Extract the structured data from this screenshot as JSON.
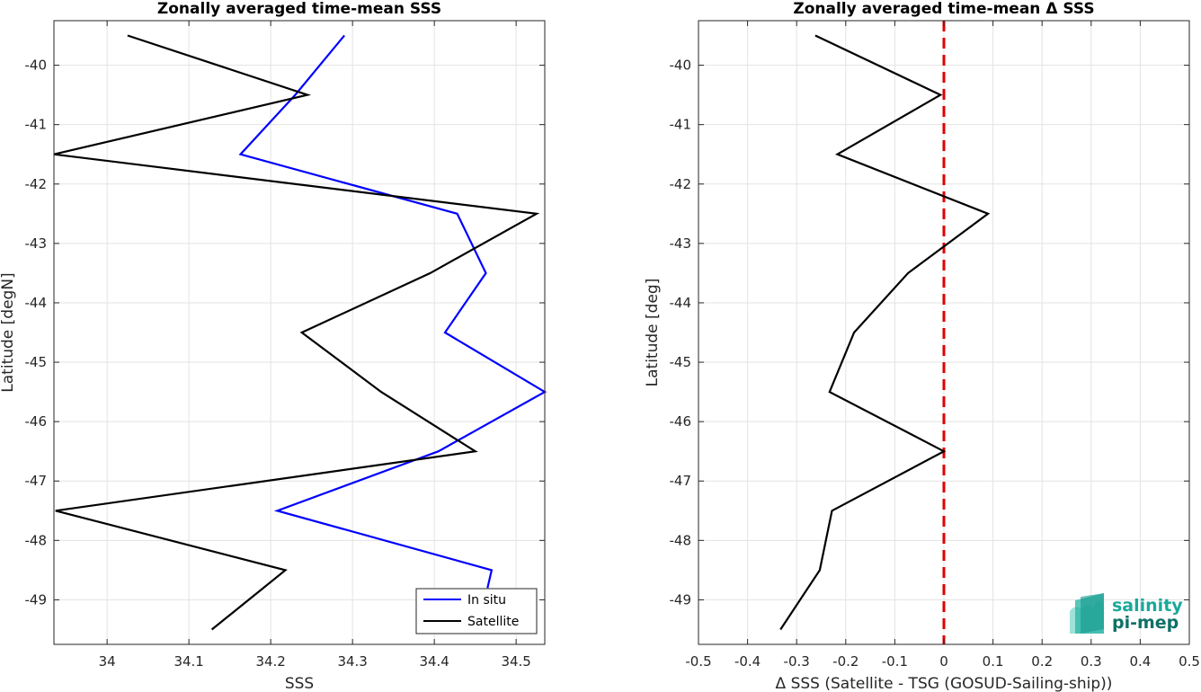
{
  "chart_data": [
    {
      "type": "line",
      "title": "Zonally averaged time-mean SSS",
      "xlabel": "SSS",
      "ylabel": "Latitude [degN]",
      "xlim": [
        33.935,
        34.535
      ],
      "ylim": [
        -49.75,
        -39.25
      ],
      "xticks": [
        34,
        34.1,
        34.2,
        34.3,
        34.4,
        34.5
      ],
      "xtick_labels": [
        "34",
        "34.1",
        "34.2",
        "34.3",
        "34.4",
        "34.5"
      ],
      "yticks": [
        -40,
        -41,
        -42,
        -43,
        -44,
        -45,
        -46,
        -47,
        -48,
        -49
      ],
      "ytick_labels": [
        "-40",
        "-41",
        "-42",
        "-43",
        "-44",
        "-45",
        "-46",
        "-47",
        "-48",
        "-49"
      ],
      "grid": true,
      "legend": "bottom-right",
      "series": [
        {
          "name": "In situ",
          "color": "#0000ff",
          "x": [
            34.29,
            34.23,
            34.163,
            34.428,
            34.463,
            34.413,
            34.535,
            34.405,
            34.208,
            34.47,
            34.465
          ],
          "y": [
            -39.5,
            -40.5,
            -41.5,
            -42.5,
            -43.5,
            -44.5,
            -45.5,
            -46.5,
            -47.5,
            -48.5,
            -48.8
          ]
        },
        {
          "name": "Satellite",
          "color": "#000000",
          "x": [
            34.025,
            34.245,
            33.935,
            34.525,
            34.395,
            34.238,
            34.335,
            34.45,
            33.937,
            34.218,
            34.128
          ],
          "y": [
            -39.5,
            -40.5,
            -41.5,
            -42.5,
            -43.5,
            -44.5,
            -45.5,
            -46.5,
            -47.5,
            -48.5,
            -49.5
          ]
        }
      ]
    },
    {
      "type": "line",
      "title": "Zonally averaged time-mean Δ SSS",
      "xlabel": "Δ SSS (Satellite - TSG (GOSUD-Sailing-ship))",
      "ylabel": "Latitude [deg]",
      "xlim": [
        -0.5,
        0.5
      ],
      "ylim": [
        -49.75,
        -39.25
      ],
      "xticks": [
        -0.5,
        -0.4,
        -0.3,
        -0.2,
        -0.1,
        0,
        0.1,
        0.2,
        0.3,
        0.4,
        0.5
      ],
      "xtick_labels": [
        "-0.5",
        "-0.4",
        "-0.3",
        "-0.2",
        "-0.1",
        "0",
        "0.1",
        "0.2",
        "0.3",
        "0.4",
        "0.5"
      ],
      "yticks": [
        -40,
        -41,
        -42,
        -43,
        -44,
        -45,
        -46,
        -47,
        -48,
        -49
      ],
      "ytick_labels": [
        "-40",
        "-41",
        "-42",
        "-43",
        "-44",
        "-45",
        "-46",
        "-47",
        "-48",
        "-49"
      ],
      "grid": true,
      "zero_line_color": "#e00000",
      "series": [
        {
          "color": "#000000",
          "x": [
            -0.262,
            -0.007,
            -0.217,
            0.09,
            -0.073,
            -0.183,
            -0.233,
            0,
            -0.228,
            -0.253,
            -0.333
          ],
          "y": [
            -39.5,
            -40.5,
            -41.5,
            -42.5,
            -43.5,
            -44.5,
            -45.5,
            -46.5,
            -47.5,
            -48.5,
            -49.5
          ]
        }
      ]
    }
  ],
  "logo": {
    "line1": "salinity",
    "line2": "pi-mep",
    "color1": "#1aa89a",
    "color2": "#0e7168"
  }
}
